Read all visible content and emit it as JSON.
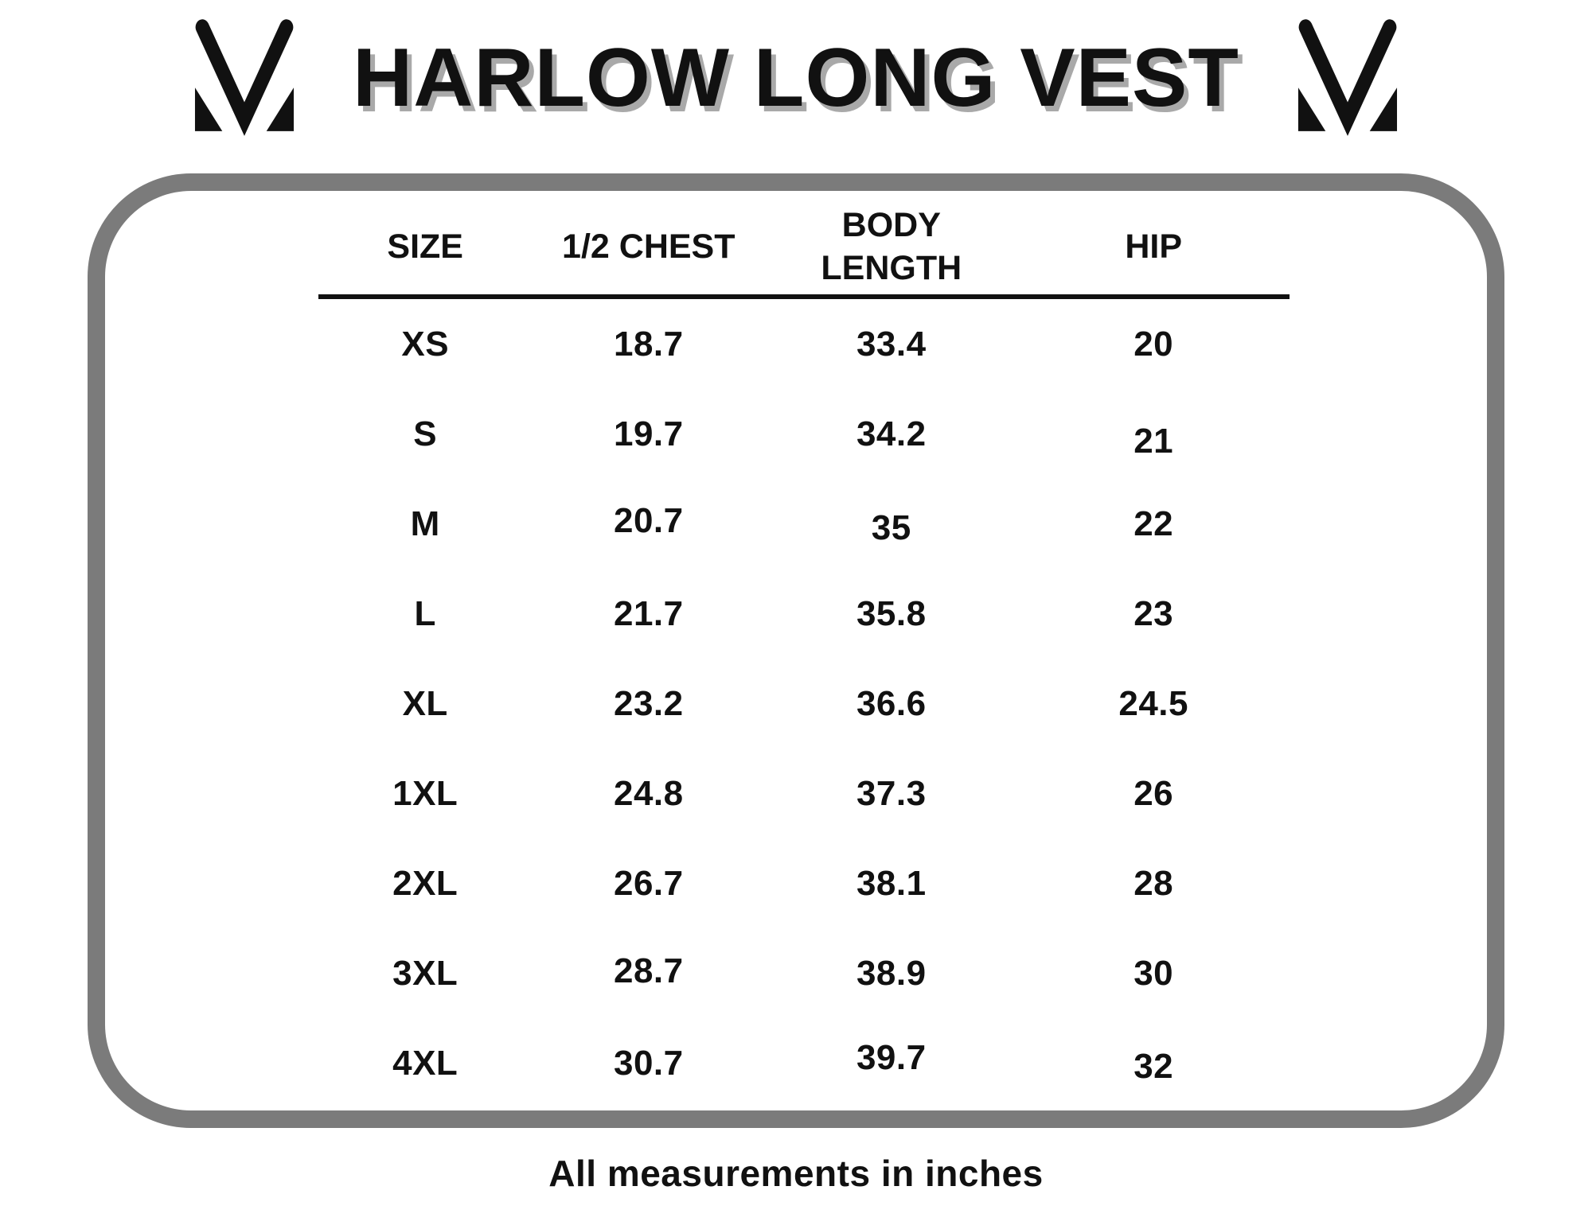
{
  "chart_data": {
    "type": "table",
    "title": "HARLOW LONG VEST",
    "columns": [
      "SIZE",
      "1/2 CHEST",
      "BODY LENGTH",
      "HIP"
    ],
    "rows": [
      {
        "size": "XS",
        "half_chest": "18.7",
        "body_length": "33.4",
        "hip": "20"
      },
      {
        "size": "S",
        "half_chest": "19.7",
        "body_length": "34.2",
        "hip": "21"
      },
      {
        "size": "M",
        "half_chest": "20.7",
        "body_length": "35",
        "hip": "22"
      },
      {
        "size": "L",
        "half_chest": "21.7",
        "body_length": "35.8",
        "hip": "23"
      },
      {
        "size": "XL",
        "half_chest": "23.2",
        "body_length": "36.6",
        "hip": "24.5"
      },
      {
        "size": "1XL",
        "half_chest": "24.8",
        "body_length": "37.3",
        "hip": "26"
      },
      {
        "size": "2XL",
        "half_chest": "26.7",
        "body_length": "38.1",
        "hip": "28"
      },
      {
        "size": "3XL",
        "half_chest": "28.7",
        "body_length": "38.9",
        "hip": "30"
      },
      {
        "size": "4XL",
        "half_chest": "30.7",
        "body_length": "39.7",
        "hip": "32"
      }
    ],
    "note": "All measurements in inches",
    "units": "inches",
    "layout_hints": "4-column centered table inside gray rounded frame, black rule under header row"
  },
  "colors": {
    "frame_border": "#7b7b7b",
    "text": "#111111",
    "title_shadow": "#a9a9a9",
    "background": "#ffffff"
  }
}
